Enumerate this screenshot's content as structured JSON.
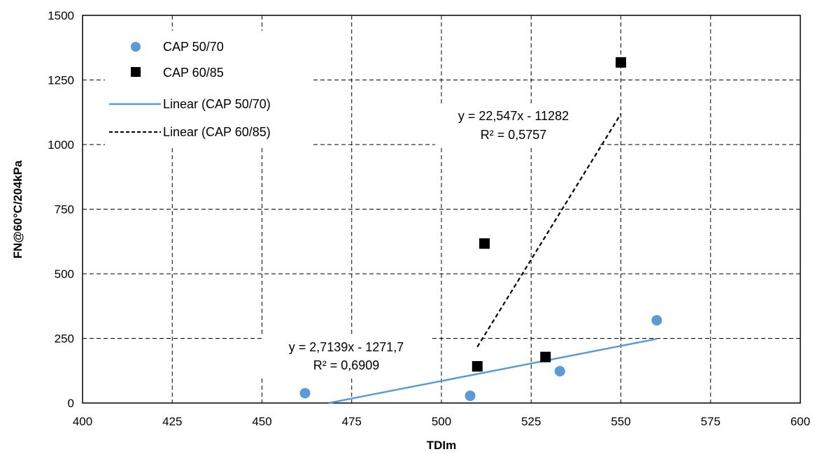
{
  "chart_data": {
    "type": "scatter",
    "title": "",
    "xlabel": "TDIm",
    "ylabel": "FN@60°C/204kPa",
    "xlim": [
      400,
      600
    ],
    "ylim": [
      0,
      1500
    ],
    "xticks": [
      400,
      425,
      450,
      475,
      500,
      525,
      550,
      575,
      600
    ],
    "yticks": [
      0,
      250,
      500,
      750,
      1000,
      1250,
      1500
    ],
    "grid": true,
    "legend_position": "top-left",
    "series": [
      {
        "name": "CAP 50/70",
        "marker": "circle",
        "color": "#5B9BD5",
        "points": [
          {
            "x": 462,
            "y": 38
          },
          {
            "x": 508,
            "y": 28
          },
          {
            "x": 533,
            "y": 123
          },
          {
            "x": 560,
            "y": 320
          }
        ]
      },
      {
        "name": "CAP 60/85",
        "marker": "square",
        "color": "#000000",
        "points": [
          {
            "x": 510,
            "y": 142
          },
          {
            "x": 512,
            "y": 617
          },
          {
            "x": 529,
            "y": 178
          },
          {
            "x": 550,
            "y": 1318
          }
        ]
      }
    ],
    "trendlines": [
      {
        "name": "Linear (CAP 50/70)",
        "style": "solid",
        "color": "#5B9BD5",
        "slope": 2.7139,
        "intercept": -1271.7,
        "x_range": [
          462,
          560
        ],
        "equation": "y = 2,7139x - 1271,7",
        "r2": "R² = 0,6909"
      },
      {
        "name": "Linear (CAP 60/85)",
        "style": "dashed",
        "color": "#000000",
        "slope": 22.547,
        "intercept": -11282,
        "x_range": [
          510,
          550
        ],
        "equation": "y = 22,547x - 11282",
        "r2": "R² = 0,5757"
      }
    ]
  }
}
